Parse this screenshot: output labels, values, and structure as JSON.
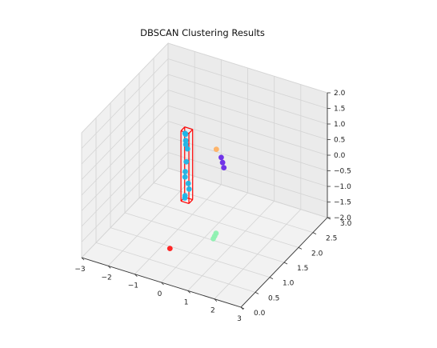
{
  "chart_data": {
    "type": "scatter",
    "title": "DBSCAN Clustering Results",
    "xlabel": "",
    "ylabel": "",
    "zlabel": "",
    "xlim": [
      -3,
      3
    ],
    "ylim": [
      0,
      3
    ],
    "zlim": [
      -2,
      2
    ],
    "x_ticks": [
      "−3",
      "−2",
      "−1",
      "0",
      "1",
      "2",
      "3"
    ],
    "y_ticks": [
      "0.0",
      "0.5",
      "1.0",
      "1.5",
      "2.0",
      "2.5",
      "3.0"
    ],
    "z_ticks": [
      "−2.0",
      "−1.5",
      "−1.0",
      "−0.5",
      "0.0",
      "0.5",
      "1.0",
      "1.5",
      "2.0"
    ],
    "grid": true,
    "colors": {
      "cyan_cluster": "#1cb6e8",
      "purple_cluster": "#6a2ae8",
      "orange_cluster": "#ffb163",
      "green_cluster": "#8df0b0",
      "noise": "#ff1a1a",
      "highlight_box": "#ff0000"
    },
    "series": [
      {
        "color_key": "cyan_cluster",
        "points": [
          [
            -0.95,
            1.7,
            0.9
          ],
          [
            -0.95,
            1.72,
            0.85
          ],
          [
            -0.9,
            1.68,
            0.7
          ],
          [
            -0.92,
            1.7,
            0.55
          ],
          [
            -0.88,
            1.72,
            0.4
          ],
          [
            -0.9,
            1.7,
            0.0
          ],
          [
            -0.92,
            1.68,
            -0.3
          ],
          [
            -0.95,
            1.7,
            -0.5
          ],
          [
            -0.85,
            1.72,
            -0.7
          ],
          [
            -0.8,
            1.7,
            -0.85
          ],
          [
            -0.95,
            1.7,
            -1.1
          ],
          [
            -0.98,
            1.72,
            -1.2
          ]
        ]
      },
      {
        "color_key": "purple_cluster",
        "points": [
          [
            0.25,
            1.85,
            0.3
          ],
          [
            0.3,
            1.85,
            0.15
          ],
          [
            0.35,
            1.85,
            0.0
          ]
        ]
      },
      {
        "color_key": "orange_cluster",
        "points": [
          [
            0.1,
            1.82,
            0.55
          ]
        ]
      },
      {
        "color_key": "green_cluster",
        "points": [
          [
            0.55,
            1.3,
            -1.7
          ],
          [
            0.6,
            1.3,
            -1.6
          ],
          [
            0.65,
            1.3,
            -1.5
          ]
        ]
      },
      {
        "color_key": "noise",
        "points": [
          [
            0.0,
            0.3,
            -1.2
          ]
        ]
      }
    ],
    "highlight_box": {
      "x": [
        -1.05,
        -0.75
      ],
      "y": [
        1.65,
        1.78
      ],
      "z": [
        -1.25,
        1.0
      ]
    }
  }
}
